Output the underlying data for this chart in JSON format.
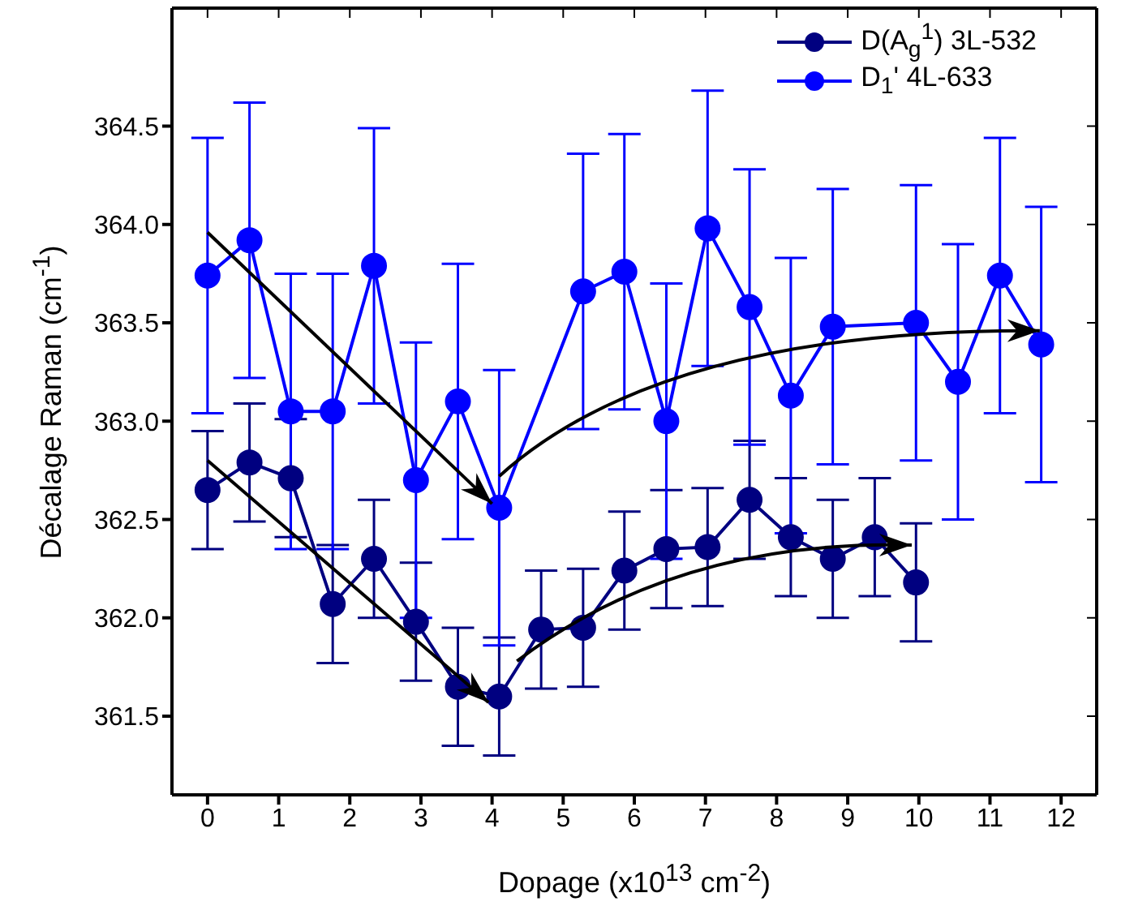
{
  "chart_data": {
    "type": "line",
    "xlabel": "Dopage (x10$^{13}$ cm$^{-2}$)",
    "ylabel": "Décalage Raman (cm$^{-1}$)",
    "xlim": [
      -0.5,
      12.5
    ],
    "xticks": [
      0,
      1,
      2,
      3,
      4,
      5,
      6,
      7,
      8,
      9,
      10,
      11,
      12
    ],
    "ylim": [
      361.1,
      365.1
    ],
    "yticks": [
      361.5,
      {
        "value": 362,
        "label": "362.0"
      },
      362.5,
      {
        "value": 363,
        "label": "363.0"
      },
      363.5,
      {
        "value": 364,
        "label": "364.0"
      },
      364.5
    ],
    "marker": "circle",
    "line_style": "solid",
    "legend": "top right",
    "series": [
      {
        "name": "D(A$_{g}$$^{1}$) 3L-532",
        "color": "#000080",
        "x": [
          0,
          0.59,
          1.17,
          1.76,
          2.34,
          2.93,
          3.52,
          4.1,
          4.69,
          5.28,
          5.86,
          6.45,
          7.03,
          7.62,
          8.2,
          8.79,
          9.38,
          9.96
        ],
        "values": [
          362.65,
          362.79,
          362.71,
          362.07,
          362.3,
          361.98,
          361.65,
          361.6,
          361.94,
          361.95,
          362.24,
          362.35,
          362.36,
          362.6,
          362.41,
          362.3,
          362.41,
          362.18
        ],
        "errors": [
          0.3,
          0.3,
          0.3,
          0.3,
          0.3,
          0.3,
          0.3,
          0.3,
          0.3,
          0.3,
          0.3,
          0.3,
          0.3,
          0.3,
          0.3,
          0.3,
          0.3,
          0.3
        ]
      },
      {
        "name": "D$_{1}$' 4L-633",
        "color": "#0000ff",
        "x": [
          0,
          0.59,
          1.17,
          1.76,
          2.34,
          2.93,
          3.52,
          4.1,
          5.28,
          5.86,
          6.45,
          7.03,
          7.62,
          8.2,
          8.79,
          9.96,
          10.55,
          11.14,
          11.72
        ],
        "values": [
          363.74,
          363.92,
          363.05,
          363.05,
          363.79,
          362.7,
          363.1,
          362.56,
          363.66,
          363.76,
          363.0,
          363.98,
          363.58,
          363.13,
          363.48,
          363.5,
          363.2,
          363.74,
          363.39
        ],
        "errors": [
          0.7,
          0.7,
          0.7,
          0.7,
          0.7,
          0.7,
          0.7,
          0.7,
          0.7,
          0.7,
          0.7,
          0.7,
          0.7,
          0.7,
          0.7,
          0.7,
          0.7,
          0.7,
          0.7
        ]
      }
    ]
  }
}
